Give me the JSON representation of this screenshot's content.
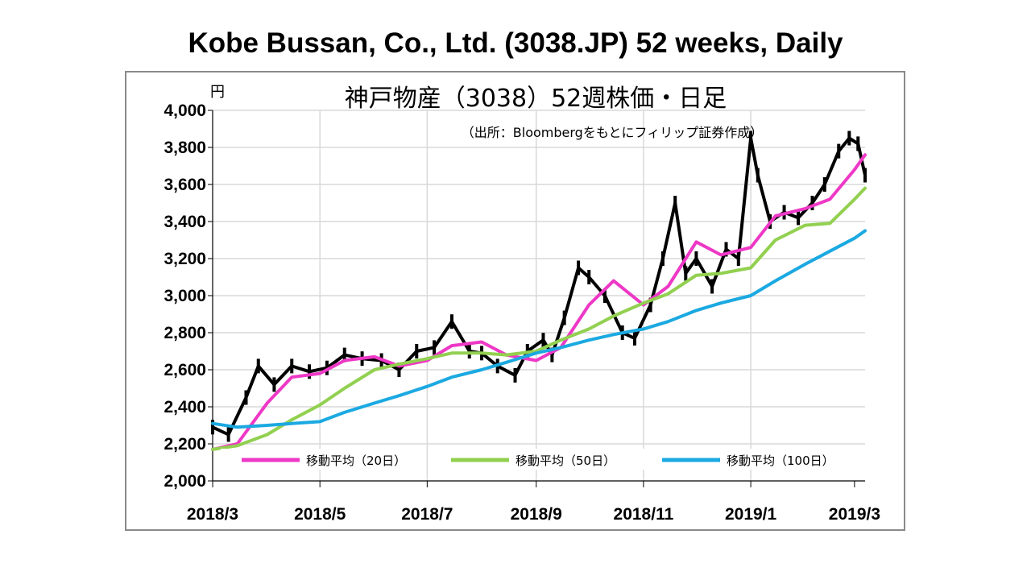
{
  "page": {
    "title": "Kobe Bussan, Co., Ltd. (3038.JP) 52 weeks, Daily"
  },
  "chart_data": {
    "type": "line",
    "title": "神戸物産（3038）52週株価・日足",
    "subtitle": "（出所：Bloombergをもとにフィリップ証券作成）",
    "ylabel": "円",
    "xlabel": "",
    "ylim": [
      2000,
      4000
    ],
    "yticks": [
      "2,000",
      "2,200",
      "2,400",
      "2,600",
      "2,800",
      "3,000",
      "3,200",
      "3,400",
      "3,600",
      "3,800",
      "4,000"
    ],
    "yticks_values": [
      2000,
      2200,
      2400,
      2600,
      2800,
      3000,
      3200,
      3400,
      3600,
      3800,
      4000
    ],
    "xticks": [
      "2018/3",
      "2018/5",
      "2018/7",
      "2018/9",
      "2018/11",
      "2019/1",
      "2019/3"
    ],
    "xrange": [
      "2018-03-01",
      "2019-03-07"
    ],
    "xtick_dates": [
      "2018-03-01",
      "2018-05-01",
      "2018-07-01",
      "2018-09-01",
      "2018-11-01",
      "2019-01-01",
      "2019-03-01"
    ],
    "grid": true,
    "legend_position": "bottom",
    "colors": {
      "price": "#000000",
      "ma20": "#ee38c6",
      "ma50": "#92d050",
      "ma100": "#1ba9e1",
      "grid": "#d9d9d9"
    },
    "price": {
      "name": "",
      "dates": [
        "2018-03-01",
        "2018-03-10",
        "2018-03-20",
        "2018-03-27",
        "2018-04-05",
        "2018-04-15",
        "2018-04-25",
        "2018-05-05",
        "2018-05-15",
        "2018-05-25",
        "2018-06-05",
        "2018-06-15",
        "2018-06-25",
        "2018-07-05",
        "2018-07-15",
        "2018-07-25",
        "2018-08-01",
        "2018-08-10",
        "2018-08-20",
        "2018-08-27",
        "2018-09-05",
        "2018-09-10",
        "2018-09-17",
        "2018-09-25",
        "2018-10-01",
        "2018-10-10",
        "2018-10-20",
        "2018-10-27",
        "2018-11-05",
        "2018-11-12",
        "2018-11-19",
        "2018-11-25",
        "2018-12-01",
        "2018-12-10",
        "2018-12-18",
        "2018-12-25",
        "2019-01-01",
        "2019-01-05",
        "2019-01-12",
        "2019-01-20",
        "2019-01-28",
        "2019-02-05",
        "2019-02-12",
        "2019-02-20",
        "2019-02-26",
        "2019-03-03",
        "2019-03-07"
      ],
      "close": [
        2290,
        2250,
        2450,
        2620,
        2520,
        2620,
        2590,
        2610,
        2680,
        2660,
        2650,
        2600,
        2700,
        2720,
        2860,
        2700,
        2690,
        2620,
        2570,
        2700,
        2760,
        2680,
        2880,
        3150,
        3100,
        3000,
        2800,
        2770,
        2950,
        3200,
        3500,
        3120,
        3200,
        3050,
        3250,
        3200,
        3850,
        3650,
        3400,
        3450,
        3420,
        3500,
        3600,
        3780,
        3850,
        3820,
        3650
      ]
    },
    "series": [
      {
        "name": "移動平均（20日）",
        "dates": [
          "2018-03-01",
          "2018-03-15",
          "2018-04-01",
          "2018-04-15",
          "2018-05-01",
          "2018-05-15",
          "2018-06-01",
          "2018-06-15",
          "2018-07-01",
          "2018-07-15",
          "2018-08-01",
          "2018-08-15",
          "2018-09-01",
          "2018-09-15",
          "2018-10-01",
          "2018-10-15",
          "2018-11-01",
          "2018-11-15",
          "2018-12-01",
          "2018-12-15",
          "2019-01-01",
          "2019-01-15",
          "2019-02-01",
          "2019-02-15",
          "2019-03-01",
          "2019-03-07"
        ],
        "values": [
          2170,
          2200,
          2420,
          2560,
          2580,
          2650,
          2670,
          2620,
          2650,
          2730,
          2750,
          2680,
          2650,
          2720,
          2950,
          3080,
          2950,
          3050,
          3290,
          3220,
          3260,
          3430,
          3470,
          3520,
          3680,
          3760
        ]
      },
      {
        "name": "移動平均（50日）",
        "dates": [
          "2018-03-01",
          "2018-03-15",
          "2018-04-01",
          "2018-04-15",
          "2018-05-01",
          "2018-05-15",
          "2018-06-01",
          "2018-06-15",
          "2018-07-01",
          "2018-07-15",
          "2018-08-01",
          "2018-08-15",
          "2018-09-01",
          "2018-09-15",
          "2018-10-01",
          "2018-10-15",
          "2018-11-01",
          "2018-11-15",
          "2018-12-01",
          "2018-12-15",
          "2019-01-01",
          "2019-01-15",
          "2019-02-01",
          "2019-02-15",
          "2019-03-01",
          "2019-03-07"
        ],
        "values": [
          2170,
          2190,
          2250,
          2330,
          2410,
          2500,
          2600,
          2630,
          2660,
          2690,
          2690,
          2680,
          2700,
          2760,
          2820,
          2890,
          2960,
          3010,
          3110,
          3120,
          3150,
          3300,
          3380,
          3390,
          3520,
          3580
        ]
      },
      {
        "name": "移動平均（100日）",
        "dates": [
          "2018-03-01",
          "2018-03-15",
          "2018-04-01",
          "2018-04-15",
          "2018-05-01",
          "2018-05-15",
          "2018-06-01",
          "2018-06-15",
          "2018-07-01",
          "2018-07-15",
          "2018-08-01",
          "2018-08-15",
          "2018-09-01",
          "2018-09-15",
          "2018-10-01",
          "2018-10-15",
          "2018-11-01",
          "2018-11-15",
          "2018-12-01",
          "2018-12-15",
          "2019-01-01",
          "2019-01-15",
          "2019-02-01",
          "2019-02-15",
          "2019-03-01",
          "2019-03-07"
        ],
        "values": [
          2310,
          2290,
          2300,
          2310,
          2320,
          2370,
          2420,
          2460,
          2510,
          2560,
          2600,
          2640,
          2690,
          2720,
          2760,
          2790,
          2820,
          2860,
          2920,
          2960,
          3000,
          3080,
          3170,
          3240,
          3310,
          3350
        ]
      }
    ]
  }
}
